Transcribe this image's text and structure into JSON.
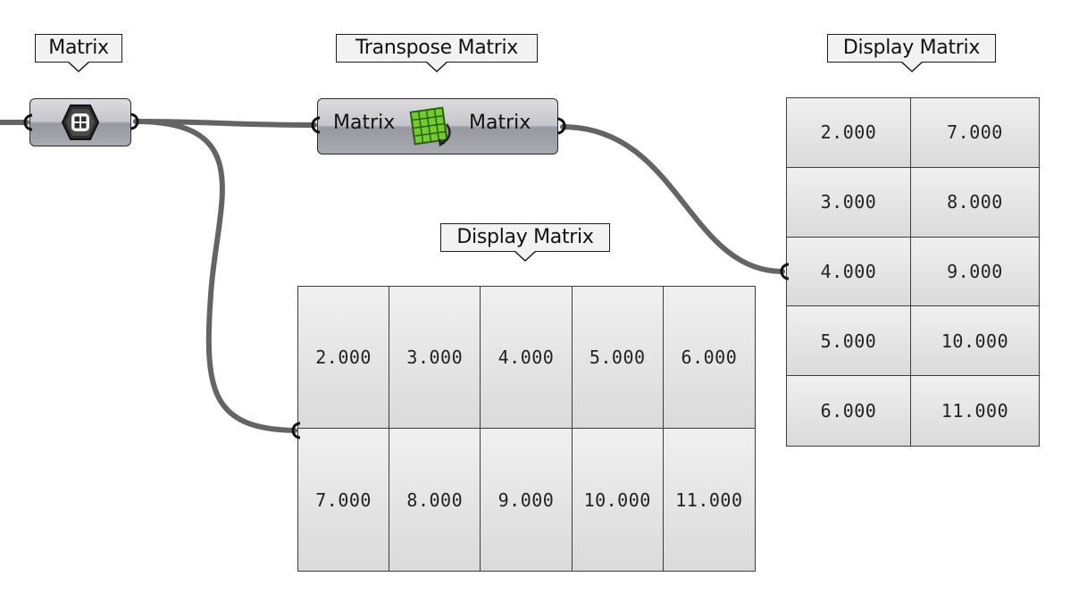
{
  "matrix_param": {
    "label": "Matrix"
  },
  "transpose_component": {
    "label": "Transpose Matrix",
    "input_label": "Matrix",
    "output_label": "Matrix"
  },
  "display_matrix_right": {
    "label": "Display Matrix",
    "rows": [
      [
        "2.000",
        "7.000"
      ],
      [
        "3.000",
        "8.000"
      ],
      [
        "4.000",
        "9.000"
      ],
      [
        "5.000",
        "10.000"
      ],
      [
        "6.000",
        "11.000"
      ]
    ]
  },
  "display_matrix_bottom": {
    "label": "Display Matrix",
    "rows": [
      [
        "2.000",
        "3.000",
        "4.000",
        "5.000",
        "6.000"
      ],
      [
        "7.000",
        "8.000",
        "9.000",
        "10.000",
        "11.000"
      ]
    ]
  },
  "colors": {
    "wire": "#646464",
    "component_top": "#dcdce0",
    "component_bottom": "#9898a1",
    "panel_cell": "#e6e6e6",
    "transpose_icon": "#6fce2a"
  }
}
